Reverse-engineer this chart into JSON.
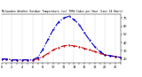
{
  "title": "Milwaukee Weather Outdoor Temperature (vs) THSW Index per Hour (Last 24 Hours)",
  "hours": [
    0,
    1,
    2,
    3,
    4,
    5,
    6,
    7,
    8,
    9,
    10,
    11,
    12,
    13,
    14,
    15,
    16,
    17,
    18,
    19,
    20,
    21,
    22,
    23
  ],
  "temp": [
    20,
    20,
    19,
    19,
    19,
    19,
    19,
    20,
    23,
    27,
    31,
    34,
    36,
    37,
    36,
    35,
    33,
    31,
    29,
    27,
    25,
    24,
    23,
    22
  ],
  "thsw": [
    20,
    20,
    19,
    19,
    19,
    19,
    19,
    22,
    32,
    44,
    56,
    65,
    70,
    72,
    68,
    62,
    52,
    43,
    35,
    29,
    25,
    24,
    23,
    22
  ],
  "temp_color": "#cc0000",
  "thsw_color": "#0000cc",
  "bg_color": "#ffffff",
  "plot_bg": "#ffffff",
  "grid_color": "#888888",
  "ylim_min": 15,
  "ylim_max": 75,
  "xlim_min": 0,
  "xlim_max": 23,
  "ytick_positions": [
    20,
    30,
    40,
    50,
    60,
    70
  ],
  "ytick_labels": [
    "20",
    "30",
    "40",
    "50",
    "60",
    "70"
  ],
  "xtick_positions": [
    0,
    1,
    2,
    3,
    4,
    5,
    6,
    7,
    8,
    9,
    10,
    11,
    12,
    13,
    14,
    15,
    16,
    17,
    18,
    19,
    20,
    21,
    22,
    23
  ],
  "grid_positions": [
    0,
    2,
    4,
    6,
    8,
    10,
    12,
    14,
    16,
    18,
    20,
    22
  ]
}
